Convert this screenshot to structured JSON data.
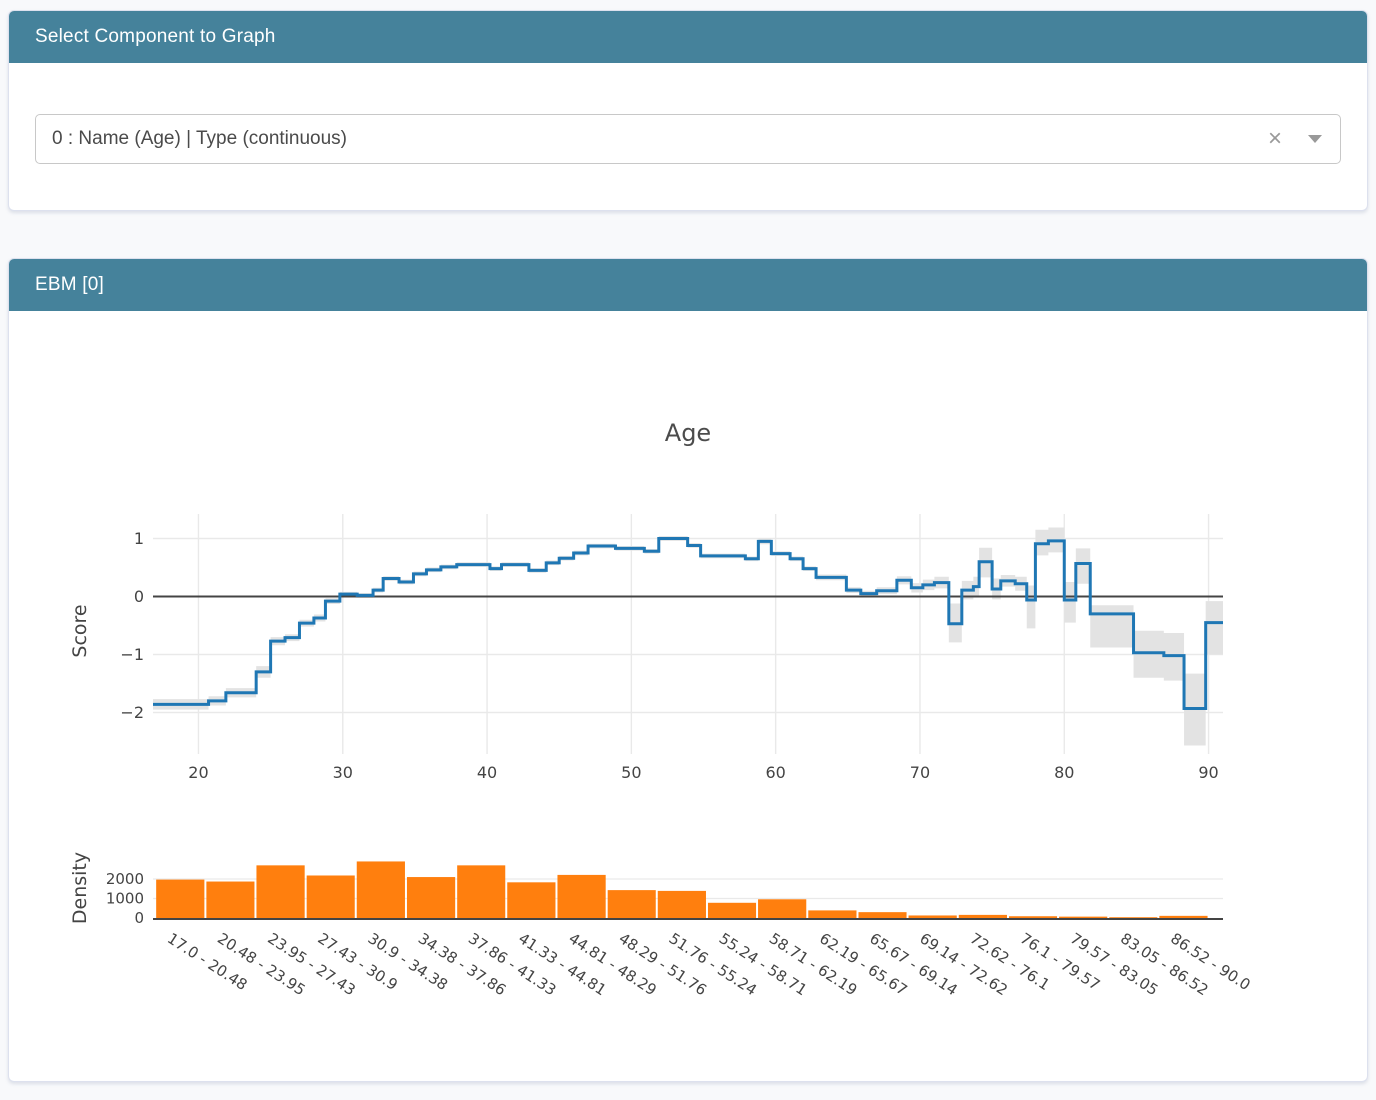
{
  "select_card": {
    "title": "Select Component to Graph",
    "dropdown": {
      "value": "0 : Name (Age) | Type (continuous)",
      "clear_icon": "×"
    }
  },
  "ebm_card": {
    "title": "EBM [0]"
  },
  "colors": {
    "header_bg": "#45829b",
    "line": "#1f77b4",
    "band": "#e3e3e3",
    "bar": "#ff7f0e",
    "grid": "#e9e9e9",
    "zero_line": "#444444",
    "axis_text": "#444444",
    "title_text": "#4c4c4c"
  },
  "chart_data": [
    {
      "type": "line",
      "subtype": "step-hv",
      "title": "Age",
      "xlabel": "",
      "ylabel": "Score",
      "xlim": [
        16.85,
        91.0
      ],
      "ylim": [
        -2.72,
        1.42
      ],
      "grid": true,
      "zero_line": true,
      "x_ticks": [
        20,
        30,
        40,
        50,
        60,
        70,
        80,
        90
      ],
      "y_ticks": [
        1,
        0,
        -1,
        -2
      ],
      "x_edges": [
        16.85,
        20.7,
        21.9,
        24.0,
        25.0,
        26.0,
        27.0,
        28.0,
        28.8,
        29.8,
        31.0,
        32.1,
        32.8,
        33.9,
        34.9,
        35.8,
        36.8,
        37.9,
        40.2,
        41.0,
        42.9,
        44.1,
        45.0,
        46.0,
        47.0,
        48.9,
        50.9,
        51.9,
        53.9,
        54.8,
        57.9,
        58.8,
        59.7,
        61.0,
        61.9,
        62.8,
        64.9,
        65.9,
        67.0,
        68.4,
        69.4,
        70.2,
        71.0,
        72.0,
        72.9,
        73.7,
        74.1,
        75.0,
        75.6,
        76.6,
        77.4,
        78.0,
        78.9,
        80.0,
        80.8,
        81.8,
        84.8,
        86.9,
        88.3,
        89.8,
        91.0
      ],
      "series": [
        {
          "name": "Score",
          "values": [
            -1.86,
            -1.8,
            -1.66,
            -1.3,
            -0.77,
            -0.71,
            -0.46,
            -0.37,
            -0.08,
            0.04,
            0.02,
            0.11,
            0.31,
            0.25,
            0.39,
            0.46,
            0.51,
            0.55,
            0.48,
            0.55,
            0.45,
            0.58,
            0.66,
            0.75,
            0.87,
            0.83,
            0.78,
            1.0,
            0.88,
            0.7,
            0.65,
            0.95,
            0.74,
            0.65,
            0.48,
            0.33,
            0.11,
            0.05,
            0.1,
            0.28,
            0.15,
            0.2,
            0.24,
            -0.47,
            0.11,
            0.17,
            0.6,
            0.13,
            0.27,
            0.22,
            -0.06,
            0.91,
            0.96,
            -0.06,
            0.57,
            -0.3,
            -0.97,
            -1.02,
            -1.93,
            -0.45
          ],
          "lower": [
            -1.95,
            -1.88,
            -1.74,
            -1.4,
            -0.84,
            -0.77,
            -0.52,
            -0.43,
            -0.13,
            0.0,
            -0.02,
            0.07,
            0.27,
            0.21,
            0.35,
            0.42,
            0.47,
            0.51,
            0.44,
            0.51,
            0.41,
            0.54,
            0.62,
            0.71,
            0.83,
            0.79,
            0.74,
            0.96,
            0.84,
            0.66,
            0.61,
            0.9,
            0.7,
            0.61,
            0.44,
            0.28,
            0.06,
            0.0,
            0.04,
            0.21,
            0.07,
            0.11,
            0.14,
            -0.79,
            -0.05,
            0.0,
            0.33,
            -0.05,
            0.17,
            0.1,
            -0.55,
            0.71,
            0.76,
            -0.45,
            0.22,
            -0.88,
            -1.4,
            -1.45,
            -2.57,
            -1.0
          ],
          "upper": [
            -1.77,
            -1.72,
            -1.58,
            -1.2,
            -0.7,
            -0.65,
            -0.4,
            -0.31,
            -0.03,
            0.08,
            0.06,
            0.15,
            0.35,
            0.29,
            0.43,
            0.5,
            0.55,
            0.59,
            0.52,
            0.59,
            0.49,
            0.62,
            0.7,
            0.79,
            0.91,
            0.87,
            0.82,
            1.04,
            0.92,
            0.74,
            0.69,
            1.0,
            0.78,
            0.69,
            0.52,
            0.38,
            0.16,
            0.1,
            0.16,
            0.35,
            0.23,
            0.29,
            0.34,
            -0.12,
            0.27,
            0.34,
            0.84,
            0.31,
            0.37,
            0.34,
            0.19,
            1.15,
            1.19,
            0.25,
            0.83,
            -0.15,
            -0.59,
            -0.63,
            -1.33,
            -0.08
          ]
        }
      ]
    },
    {
      "type": "bar",
      "subtype": "histogram",
      "title": "",
      "xlabel": "",
      "ylabel": "Density",
      "ylim": [
        0,
        3300
      ],
      "y_ticks": [
        0,
        1000,
        2000
      ],
      "tick_angle": 33,
      "bin_edges": [
        17.0,
        20.48,
        23.95,
        27.43,
        30.9,
        34.38,
        37.86,
        41.33,
        44.81,
        48.29,
        51.76,
        55.24,
        58.71,
        62.19,
        65.67,
        69.14,
        72.62,
        76.1,
        79.57,
        83.05,
        86.52,
        90.0
      ],
      "categories": [
        "17.0 - 20.48",
        "20.48 - 23.95",
        "23.95 - 27.43",
        "27.43 - 30.9",
        "30.9 - 34.38",
        "34.38 - 37.86",
        "37.86 - 41.33",
        "41.33 - 44.81",
        "44.81 - 48.29",
        "48.29 - 51.76",
        "51.76 - 55.24",
        "55.24 - 58.71",
        "58.71 - 62.19",
        "62.19 - 65.67",
        "65.67 - 69.14",
        "69.14 - 72.62",
        "72.62 - 76.1",
        "76.1 - 79.57",
        "79.57 - 83.05",
        "83.05 - 86.52",
        "86.52 - 90.0"
      ],
      "values": [
        1970,
        1870,
        2700,
        2180,
        2900,
        2100,
        2700,
        1830,
        2210,
        1430,
        1390,
        780,
        960,
        390,
        300,
        130,
        160,
        90,
        70,
        40,
        110
      ]
    }
  ]
}
